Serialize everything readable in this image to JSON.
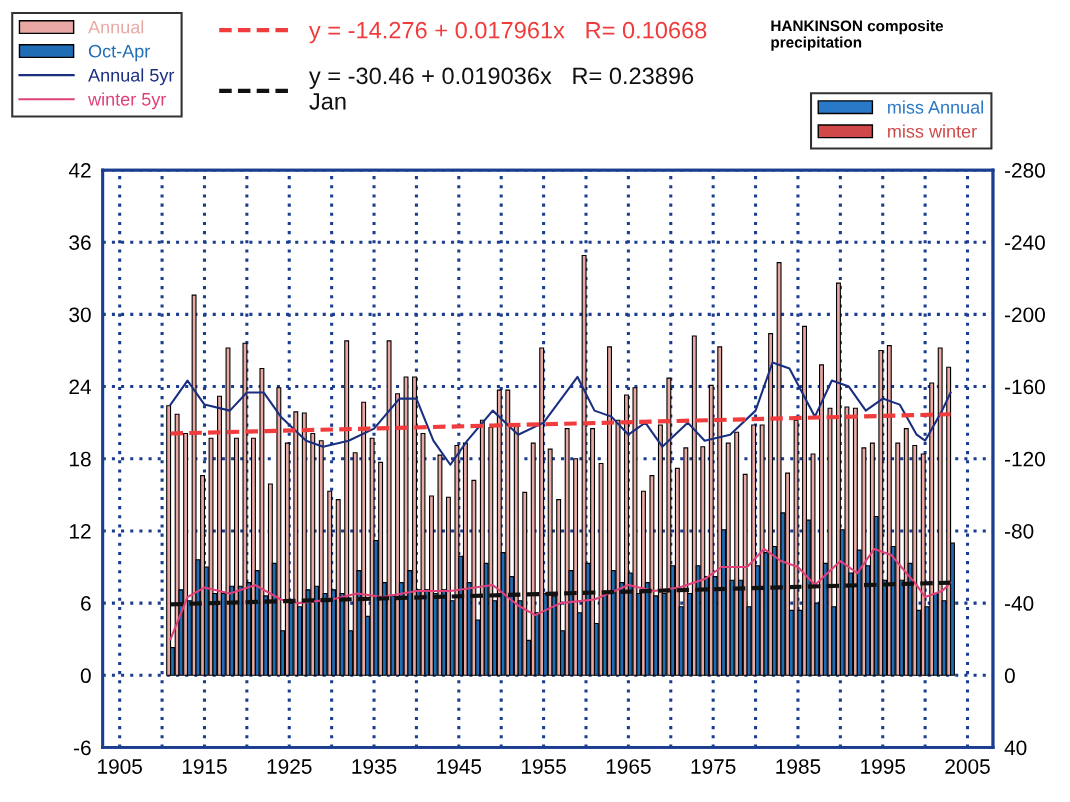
{
  "chart_data": {
    "type": "bar",
    "title": "HANKINSON composite\nprecipitation",
    "legend": "top left",
    "grid": true,
    "xlim": [
      1903,
      2008
    ],
    "xticks": [
      1905,
      {
        "value": 1910,
        "label": null
      },
      1915,
      {
        "value": 1920,
        "label": null
      },
      1925,
      {
        "value": 1930,
        "label": null
      },
      1935,
      {
        "value": 1940,
        "label": null
      },
      1945,
      {
        "value": 1950,
        "label": null
      },
      1955,
      {
        "value": 1960,
        "label": null
      },
      1965,
      {
        "value": 1970,
        "label": null
      },
      1975,
      {
        "value": 1980,
        "label": null
      },
      1985,
      {
        "value": 1990,
        "label": null
      },
      1995,
      {
        "value": 2000,
        "label": null
      },
      2005
    ],
    "ylim": [
      -6,
      42
    ],
    "yticks": [
      -6,
      0,
      6,
      12,
      18,
      24,
      30,
      36,
      42
    ],
    "y2lim": [
      40,
      -280
    ],
    "y2ticks": [
      40,
      0,
      -40,
      -80,
      -120,
      -160,
      -200,
      -240,
      -280
    ],
    "x": [
      1911,
      1912,
      1913,
      1914,
      1915,
      1916,
      1917,
      1918,
      1919,
      1920,
      1921,
      1922,
      1923,
      1924,
      1925,
      1926,
      1927,
      1928,
      1929,
      1930,
      1931,
      1932,
      1933,
      1934,
      1935,
      1936,
      1937,
      1938,
      1939,
      1940,
      1941,
      1942,
      1943,
      1944,
      1945,
      1946,
      1947,
      1948,
      1949,
      1950,
      1951,
      1952,
      1953,
      1954,
      1955,
      1956,
      1957,
      1958,
      1959,
      1960,
      1961,
      1962,
      1963,
      1964,
      1965,
      1966,
      1967,
      1968,
      1969,
      1970,
      1971,
      1972,
      1973,
      1974,
      1975,
      1976,
      1977,
      1978,
      1979,
      1980,
      1981,
      1982,
      1983,
      1984,
      1985,
      1986,
      1987,
      1988,
      1989,
      1990,
      1991,
      1992,
      1993,
      1994,
      1995,
      1996,
      1997,
      1998,
      1999,
      2000,
      2001,
      2002,
      2003
    ],
    "series": [
      {
        "name": "Annual",
        "color": "#e8a8a4",
        "values": [
          22.4,
          21.7,
          20.1,
          31.6,
          16.6,
          19.7,
          23.2,
          27.2,
          19.7,
          27.6,
          19.7,
          25.5,
          15.9,
          23.9,
          19.3,
          21.9,
          21.8,
          20.1,
          19.5,
          15.3,
          14.6,
          27.8,
          18.5,
          22.7,
          19.7,
          17.7,
          27.8,
          23.4,
          24.8,
          24.8,
          20.1,
          14.9,
          18.3,
          14.8,
          19.1,
          19.3,
          16.2,
          21.2,
          20.6,
          23.7,
          23.7,
          20.8,
          15.2,
          19.3,
          27.2,
          18.8,
          14.6,
          20.5,
          18.0,
          34.9,
          20.5,
          17.6,
          27.3,
          21.2,
          23.3,
          23.9,
          15.3,
          16.6,
          20.8,
          24.7,
          17.2,
          18.9,
          28.2,
          19.0,
          24.1,
          27.3,
          19.3,
          20.2,
          16.7,
          20.8,
          20.8,
          28.4,
          34.3,
          16.8,
          21.2,
          29.0,
          18.4,
          25.8,
          22.2,
          32.6,
          22.3,
          22.2,
          18.9,
          19.3,
          27.0,
          27.4,
          19.3,
          20.5,
          19.1,
          18.4,
          24.3,
          27.2,
          25.6
        ]
      },
      {
        "name": "Oct-Apr",
        "color": "#1f6db5",
        "values": [
          2.3,
          7.1,
          6.2,
          9.6,
          9.0,
          6.8,
          6.8,
          7.4,
          7.4,
          7.7,
          8.7,
          6.6,
          9.3,
          3.7,
          6.0,
          5.7,
          7.1,
          7.4,
          6.8,
          7.1,
          6.8,
          3.7,
          8.7,
          4.9,
          11.2,
          7.7,
          6.6,
          7.7,
          8.7,
          7.1,
          7.1,
          6.8,
          7.1,
          6.2,
          9.9,
          7.7,
          4.6,
          9.3,
          6.2,
          10.2,
          8.2,
          6.2,
          2.9,
          5.2,
          6.8,
          6.6,
          3.7,
          8.7,
          5.2,
          9.3,
          4.3,
          6.8,
          8.7,
          7.7,
          8.5,
          6.8,
          7.7,
          6.6,
          6.8,
          9.1,
          5.7,
          6.8,
          9.1,
          8.2,
          8.2,
          12.1,
          7.9,
          7.9,
          5.7,
          9.1,
          10.2,
          10.7,
          13.5,
          5.4,
          5.4,
          12.9,
          6.0,
          9.3,
          5.7,
          12.1,
          8.5,
          10.4,
          9.1,
          13.2,
          7.9,
          10.7,
          7.9,
          9.3,
          5.4,
          5.7,
          6.8,
          6.2,
          11.0
        ]
      },
      {
        "name": "Annual 5yr",
        "type": "line",
        "color": "#1a2f80",
        "x": [
          1911,
          1913,
          1915,
          1918,
          1920,
          1922,
          1924,
          1927,
          1929,
          1932,
          1935,
          1938,
          1940,
          1942,
          1944,
          1946,
          1949,
          1952,
          1955,
          1959,
          1961,
          1963,
          1965,
          1967,
          1969,
          1972,
          1974,
          1977,
          1980,
          1982,
          1984,
          1987,
          1989,
          1991,
          1993,
          1995,
          1997,
          1999,
          2000,
          2002,
          2003
        ],
        "values": [
          22.5,
          24.5,
          22.5,
          22.0,
          23.5,
          23.5,
          21.5,
          19.5,
          19.0,
          19.5,
          20.5,
          23.0,
          23.0,
          19.5,
          17.5,
          19.5,
          22.0,
          20.0,
          21.0,
          24.8,
          22.0,
          21.5,
          20.0,
          21.0,
          19.0,
          21.0,
          19.5,
          20.0,
          22.0,
          26.0,
          25.5,
          21.5,
          24.5,
          24.0,
          22.0,
          23.0,
          22.5,
          20.0,
          19.5,
          22.0,
          23.5
        ]
      },
      {
        "name": "winter 5yr",
        "type": "line",
        "color": "#e0407a",
        "x": [
          1911,
          1913,
          1915,
          1918,
          1921,
          1924,
          1926,
          1930,
          1933,
          1936,
          1940,
          1944,
          1949,
          1952,
          1954,
          1957,
          1961,
          1965,
          1968,
          1971,
          1974,
          1976,
          1979,
          1981,
          1983,
          1985,
          1987,
          1990,
          1992,
          1994,
          1996,
          1999,
          2000,
          2002,
          2003
        ],
        "values": [
          3.0,
          6.5,
          7.3,
          6.8,
          7.5,
          6.3,
          6.0,
          6.3,
          6.8,
          6.5,
          7.0,
          7.0,
          7.5,
          5.8,
          5.0,
          6.0,
          6.3,
          7.5,
          7.0,
          7.3,
          8.0,
          9.0,
          9.0,
          10.5,
          9.5,
          9.0,
          7.5,
          9.5,
          8.5,
          10.5,
          10.0,
          7.5,
          6.5,
          7.0,
          7.7
        ]
      },
      {
        "name": "y = -14.276 + 0.017961x   R= 0.10668",
        "type": "line",
        "line_style": "dashed",
        "color": "#f03c3c",
        "x": [
          1911,
          2003
        ],
        "values": [
          20.1,
          21.7
        ]
      },
      {
        "name": "y = -30.46 + 0.019036x   R= 0.23896\nJan",
        "type": "line",
        "line_style": "dashed",
        "color": "#111111",
        "x": [
          1911,
          2003
        ],
        "values": [
          5.9,
          7.7
        ]
      },
      {
        "name": "miss Annual",
        "axis": "y2",
        "color": "#2a78c8",
        "values": [
          null,
          null,
          null,
          null,
          null,
          null,
          null,
          null,
          null,
          null,
          null,
          null,
          null,
          null,
          null,
          null,
          null,
          null,
          null,
          null,
          null,
          null,
          null,
          null,
          null,
          null,
          null,
          null,
          null,
          null,
          null,
          null,
          null,
          null,
          null,
          null,
          null,
          null,
          null,
          null,
          null,
          null,
          null,
          null,
          null,
          null,
          null,
          null,
          null,
          null,
          null,
          null,
          null,
          null,
          null,
          null,
          null,
          null,
          null,
          null,
          null,
          null,
          null,
          null,
          null,
          null,
          null,
          null,
          null,
          null,
          null,
          null,
          null,
          null,
          null,
          null,
          null,
          null,
          null,
          null,
          null,
          null,
          null,
          null,
          null,
          null,
          null,
          null,
          null,
          null,
          null,
          null,
          null
        ]
      },
      {
        "name": "miss winter",
        "axis": "y2",
        "color": "#d04848",
        "values": [
          null,
          null,
          null,
          null,
          null,
          null,
          null,
          null,
          null,
          null,
          null,
          null,
          null,
          null,
          null,
          null,
          null,
          null,
          null,
          null,
          null,
          null,
          null,
          null,
          null,
          null,
          null,
          null,
          null,
          null,
          null,
          null,
          null,
          null,
          null,
          null,
          null,
          null,
          null,
          null,
          null,
          null,
          null,
          null,
          null,
          null,
          null,
          null,
          null,
          null,
          null,
          null,
          null,
          null,
          null,
          null,
          null,
          null,
          null,
          null,
          null,
          null,
          null,
          null,
          null,
          null,
          null,
          null,
          null,
          null,
          null,
          null,
          null,
          null,
          null,
          null,
          null,
          null,
          null,
          null,
          null,
          null,
          null,
          null,
          null,
          null,
          null,
          null,
          null,
          null,
          null,
          null,
          null
        ]
      }
    ]
  }
}
